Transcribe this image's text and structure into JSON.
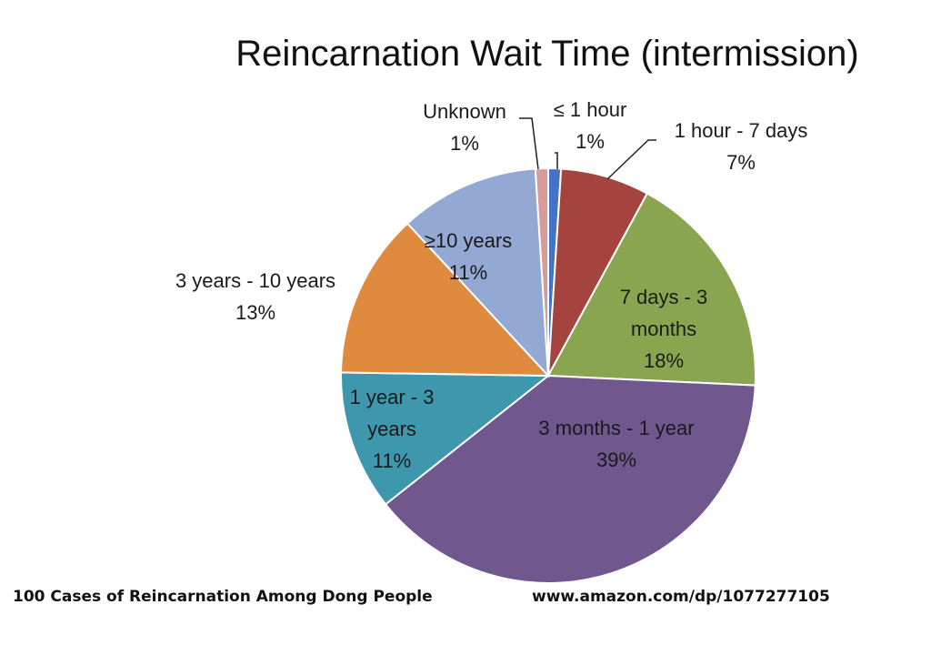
{
  "chart_data": {
    "type": "pie",
    "title": "Reincarnation Wait Time (intermission)",
    "slices": [
      {
        "label": [
          "≤ 1 hour"
        ],
        "pct_label": "1%",
        "value": 1,
        "color": "#4472C4"
      },
      {
        "label": [
          "1 hour - 7 days"
        ],
        "pct_label": "7%",
        "value": 7,
        "color": "#A5443F"
      },
      {
        "label": [
          "7 days - 3",
          "months"
        ],
        "pct_label": "18%",
        "value": 18,
        "color": "#8AA54F"
      },
      {
        "label": [
          "3 months - 1 year"
        ],
        "pct_label": "39%",
        "value": 39,
        "color": "#70588F"
      },
      {
        "label": [
          "1 year - 3",
          "years"
        ],
        "pct_label": "11%",
        "value": 11,
        "color": "#3F97AD"
      },
      {
        "label": [
          "3 years - 10 years"
        ],
        "pct_label": "13%",
        "value": 13,
        "color": "#E08A3D"
      },
      {
        "label": [
          "≥10 years"
        ],
        "pct_label": "11%",
        "value": 11,
        "color": "#93A9D3"
      },
      {
        "label": [
          "Unknown"
        ],
        "pct_label": "1%",
        "value": 1,
        "color": "#D99A9A"
      }
    ],
    "legend": "none"
  },
  "footer": {
    "book": "100 Cases of Reincarnation Among Dong People",
    "url": "www.amazon.com/dp/1077277105"
  }
}
